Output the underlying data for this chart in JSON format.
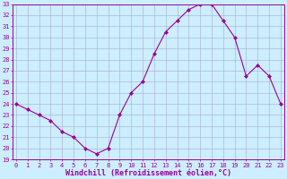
{
  "xlabel": "Windchill (Refroidissement éolien,°C)",
  "x_values": [
    0,
    1,
    2,
    3,
    4,
    5,
    6,
    7,
    8,
    9,
    10,
    11,
    12,
    13,
    14,
    15,
    16,
    17,
    18,
    19,
    20,
    21,
    22,
    23
  ],
  "y_values": [
    24.0,
    23.5,
    23.0,
    22.5,
    21.5,
    21.0,
    20.0,
    19.5,
    20.0,
    23.0,
    25.0,
    26.0,
    28.5,
    30.5,
    31.5,
    32.5,
    33.0,
    33.0,
    31.5,
    30.0,
    26.5,
    27.5,
    26.5,
    24.0
  ],
  "ylim": [
    19,
    33
  ],
  "yticks": [
    19,
    20,
    21,
    22,
    23,
    24,
    25,
    26,
    27,
    28,
    29,
    30,
    31,
    32,
    33
  ],
  "xticks": [
    0,
    1,
    2,
    3,
    4,
    5,
    6,
    7,
    8,
    9,
    10,
    11,
    12,
    13,
    14,
    15,
    16,
    17,
    18,
    19,
    20,
    21,
    22,
    23
  ],
  "line_color": "#990099",
  "marker_color": "#990099",
  "bg_color": "#cceeff",
  "grid_color": "#aaaacc",
  "axis_color": "#990099",
  "tick_color": "#990099",
  "label_color": "#990099",
  "tick_font_size": 5.0,
  "label_font_size": 6.0,
  "linewidth": 0.8,
  "markersize": 2.0
}
